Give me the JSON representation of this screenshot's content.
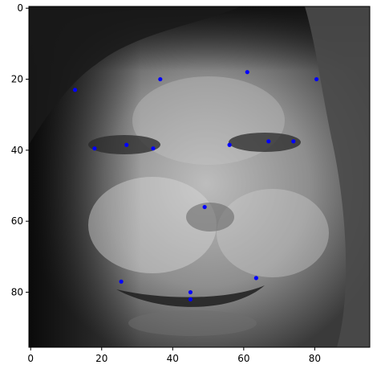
{
  "colors": {
    "background": "#ffffff",
    "axes_frame": "#000000",
    "keypoint": "#0000ff",
    "image_colormap": "gray"
  },
  "chart_data": {
    "type": "scatter",
    "title": "",
    "xlabel": "",
    "ylabel": "",
    "background_image": "grayscale face photograph (96x96 pixels)",
    "xlim": [
      -0.5,
      95.5
    ],
    "ylim": [
      95.5,
      -0.5
    ],
    "y_axis_inverted": true,
    "grid": false,
    "legend": "none",
    "x_ticks": [
      0,
      20,
      40,
      60,
      80
    ],
    "y_ticks": [
      0,
      20,
      40,
      60,
      80
    ],
    "series": [
      {
        "marker": "circle",
        "color": "#0000ff",
        "points": [
          {
            "x": 12.5,
            "y": 23.0
          },
          {
            "x": 36.5,
            "y": 20.0
          },
          {
            "x": 61.0,
            "y": 18.0
          },
          {
            "x": 80.5,
            "y": 20.0
          },
          {
            "x": 18.0,
            "y": 39.5
          },
          {
            "x": 27.0,
            "y": 38.5
          },
          {
            "x": 34.5,
            "y": 39.5
          },
          {
            "x": 56.0,
            "y": 38.5
          },
          {
            "x": 67.0,
            "y": 37.5
          },
          {
            "x": 74.0,
            "y": 37.5
          },
          {
            "x": 49.0,
            "y": 56.0
          },
          {
            "x": 25.5,
            "y": 77.0
          },
          {
            "x": 63.5,
            "y": 76.0
          },
          {
            "x": 45.0,
            "y": 80.0
          },
          {
            "x": 45.0,
            "y": 82.0
          }
        ]
      }
    ]
  }
}
